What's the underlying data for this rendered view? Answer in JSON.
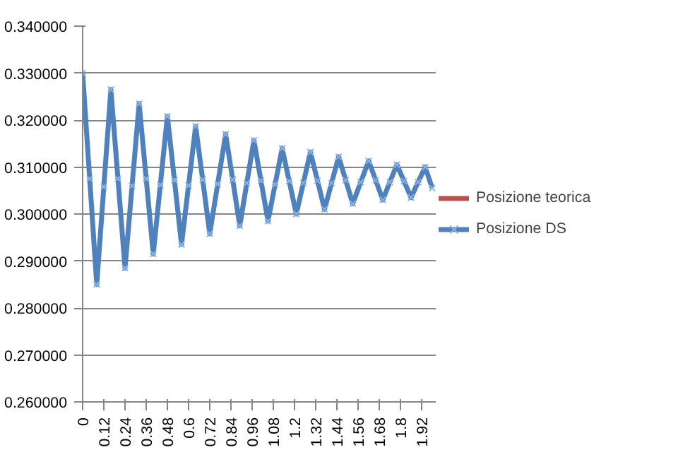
{
  "chart_data": {
    "type": "line",
    "x": [
      0,
      0.04,
      0.08,
      0.12,
      0.16,
      0.2,
      0.24,
      0.28,
      0.32,
      0.36,
      0.4,
      0.44,
      0.48,
      0.52,
      0.56,
      0.6,
      0.64,
      0.68,
      0.72,
      0.765,
      0.81,
      0.85,
      0.89,
      0.93,
      0.97,
      1.01,
      1.05,
      1.09,
      1.13,
      1.17,
      1.21,
      1.25,
      1.29,
      1.33,
      1.37,
      1.41,
      1.45,
      1.49,
      1.53,
      1.575,
      1.62,
      1.66,
      1.7,
      1.74,
      1.78,
      1.82,
      1.86,
      1.9,
      1.94,
      1.98
    ],
    "series": [
      {
        "name": "Posizione teorica",
        "color": "#c0504d",
        "marker": "none",
        "values": [
          null,
          null,
          null,
          null,
          null,
          null,
          null,
          null,
          null,
          null,
          null,
          null,
          null,
          null,
          null,
          null,
          null,
          null,
          null,
          null,
          null,
          null,
          null,
          null,
          null,
          null,
          null,
          null,
          null,
          null,
          null,
          null,
          null,
          null,
          null,
          null,
          null,
          null,
          null,
          null,
          null,
          null,
          null,
          null,
          null,
          null,
          null,
          null,
          null,
          null
        ]
      },
      {
        "name": "Posizione DS",
        "color": "#4f81bd",
        "marker": "cross",
        "values": [
          0.33,
          0.3075,
          0.285,
          0.3058,
          0.3265,
          0.3075,
          0.2885,
          0.306,
          0.3235,
          0.3075,
          0.2915,
          0.3062,
          0.3208,
          0.3072,
          0.2935,
          0.3061,
          0.3187,
          0.3073,
          0.2958,
          0.3064,
          0.317,
          0.3073,
          0.2975,
          0.3066,
          0.3157,
          0.3071,
          0.2985,
          0.3063,
          0.314,
          0.307,
          0.3,
          0.3066,
          0.3132,
          0.3071,
          0.301,
          0.3066,
          0.3122,
          0.3072,
          0.3022,
          0.3068,
          0.3113,
          0.3072,
          0.303,
          0.3068,
          0.3105,
          0.307,
          0.3035,
          0.3068,
          0.31,
          0.3055
        ]
      }
    ],
    "xlim": [
      0,
      2.0
    ],
    "xticks": [
      0,
      0.12,
      0.24,
      0.36,
      0.48,
      0.6,
      0.72,
      0.84,
      0.96,
      1.08,
      1.2,
      1.32,
      1.44,
      1.56,
      1.68,
      1.8,
      1.92
    ],
    "ylim": [
      0.26,
      0.34
    ],
    "yticks": [
      {
        "value": 0.26,
        "label": "0.260000"
      },
      {
        "value": 0.27,
        "label": "0.270000"
      },
      {
        "value": 0.28,
        "label": "0.280000"
      },
      {
        "value": 0.29,
        "label": "0.290000"
      },
      {
        "value": 0.3,
        "label": "0.300000"
      },
      {
        "value": 0.31,
        "label": "0.310000"
      },
      {
        "value": 0.32,
        "label": "0.320000"
      },
      {
        "value": 0.33,
        "label": "0.330000"
      },
      {
        "value": 0.34,
        "label": "0.340000"
      }
    ],
    "grid": "y",
    "legend": "right"
  }
}
